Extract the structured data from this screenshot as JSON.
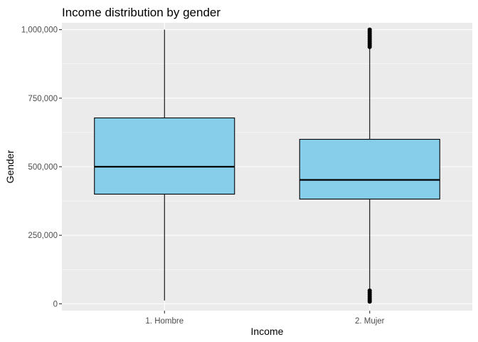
{
  "chart_data": {
    "type": "boxplot",
    "title": "Income distribution by gender",
    "xlabel": "Income",
    "ylabel": "Gender",
    "ylim": [
      -25000,
      1025000
    ],
    "yticks": [
      0,
      250000,
      500000,
      750000,
      1000000
    ],
    "ytick_labels": [
      "0",
      "250,000",
      "500,000",
      "750,000",
      "1,000,000"
    ],
    "categories": [
      "1. Hombre",
      "2. Mujer"
    ],
    "boxes": [
      {
        "category": "1. Hombre",
        "whisker_low": 12000,
        "q1": 400000,
        "median": 500000,
        "q3": 678000,
        "whisker_high": 1000000,
        "outliers": []
      },
      {
        "category": "2. Mujer",
        "whisker_low": 55000,
        "q1": 382000,
        "median": 452000,
        "q3": 600000,
        "whisker_high": 930000,
        "outliers": [
          8000,
          14000,
          20000,
          27000,
          34000,
          41000,
          48000,
          937000,
          944000,
          951000,
          958000,
          965000,
          972000,
          979000,
          986000,
          993000,
          1000000
        ]
      }
    ],
    "grid": true,
    "legend": "none",
    "colors": {
      "box_fill": "#87CEEB",
      "box_stroke": "#000000",
      "panel_background": "#EBEBEB",
      "grid": "#FFFFFF",
      "tick": "#333333"
    }
  }
}
